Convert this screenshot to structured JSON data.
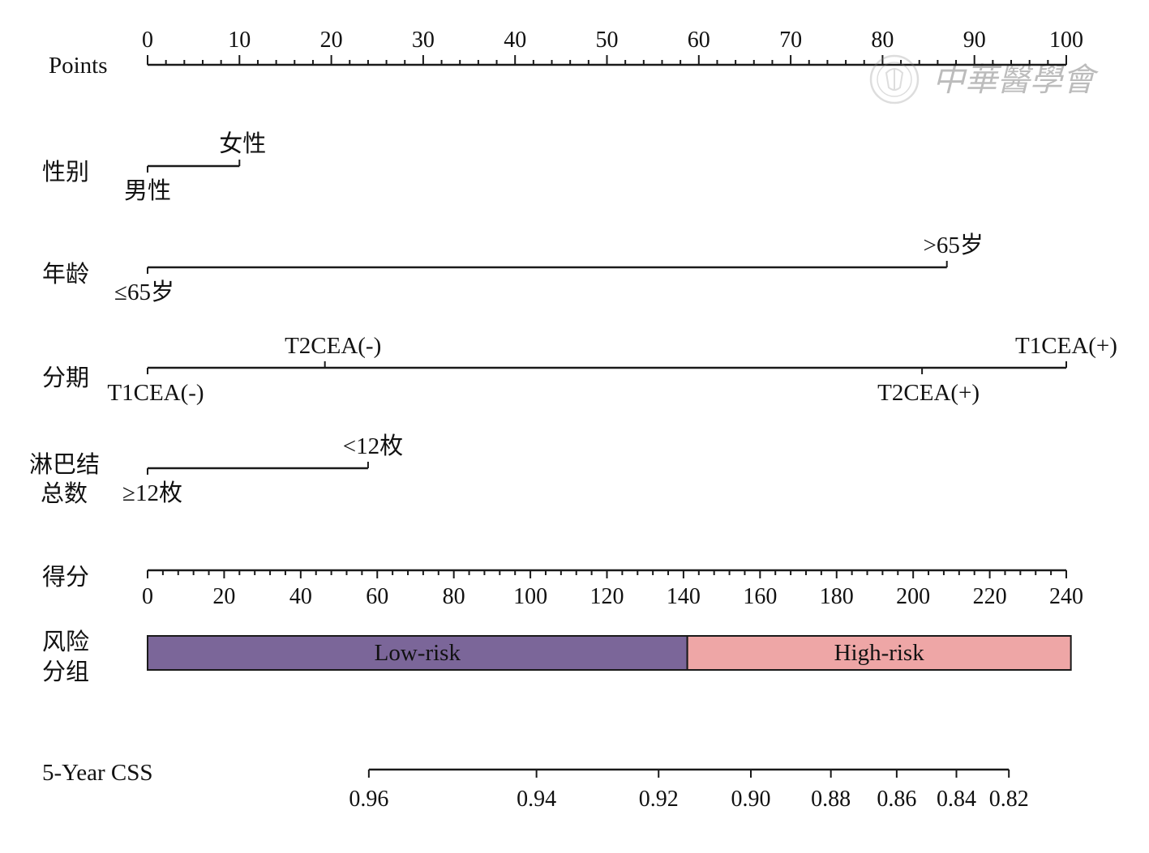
{
  "chart_data": {
    "type": "nomogram",
    "points_axis": {
      "label": "Points",
      "min": 0,
      "max": 100,
      "major_step": 10,
      "minor_step": 2,
      "tick_labels": [
        "0",
        "10",
        "20",
        "30",
        "40",
        "50",
        "60",
        "70",
        "80",
        "90",
        "100"
      ]
    },
    "variables": [
      {
        "key": "sex",
        "label": [
          "性别"
        ],
        "levels": [
          {
            "label": "男性",
            "points": 0,
            "side": "below"
          },
          {
            "label": "女性",
            "points": 10,
            "side": "above"
          }
        ]
      },
      {
        "key": "age",
        "label": [
          "年龄"
        ],
        "levels": [
          {
            "label": "≤65岁",
            "points": 0,
            "side": "below"
          },
          {
            "label": ">65岁",
            "points": 87,
            "side": "above"
          }
        ]
      },
      {
        "key": "stage",
        "label": [
          "分期"
        ],
        "levels": [
          {
            "label": "T1CEA(-)",
            "points": 0,
            "side": "below"
          },
          {
            "label": "T2CEA(-)",
            "points": 19.3,
            "side": "above"
          },
          {
            "label": "T2CEA(+)",
            "points": 84.3,
            "side": "below"
          },
          {
            "label": "T1CEA(+)",
            "points": 100,
            "side": "above"
          }
        ]
      },
      {
        "key": "lymph_nodes",
        "label": [
          "淋巴结",
          "总数"
        ],
        "levels": [
          {
            "label": "≥12枚",
            "points": 0,
            "side": "below"
          },
          {
            "label": "<12枚",
            "points": 24,
            "side": "above"
          }
        ]
      }
    ],
    "total_points_axis": {
      "label": "得分",
      "min": 0,
      "max": 240,
      "major_step": 20,
      "minor_step": 4,
      "tick_labels": [
        "0",
        "20",
        "40",
        "60",
        "80",
        "100",
        "120",
        "140",
        "160",
        "180",
        "200",
        "220",
        "240"
      ]
    },
    "risk_groups": {
      "label": [
        "风险",
        "分组"
      ],
      "groups": [
        {
          "label": "Low-risk",
          "from": 0,
          "to": 141,
          "color": "#7b6699"
        },
        {
          "label": "High-risk",
          "from": 141,
          "to": 241.2,
          "color": "#eea6a6"
        }
      ]
    },
    "css_axis": {
      "label": "5-Year CSS",
      "ticks": [
        {
          "label": "0.96",
          "value": 0.96,
          "total_points": 57.8
        },
        {
          "label": "0.94",
          "value": 0.94,
          "total_points": 101.6
        },
        {
          "label": "0.92",
          "value": 0.92,
          "total_points": 133.5
        },
        {
          "label": "0.90",
          "value": 0.9,
          "total_points": 157.6
        },
        {
          "label": "0.88",
          "value": 0.88,
          "total_points": 178.5
        },
        {
          "label": "0.86",
          "value": 0.86,
          "total_points": 195.7
        },
        {
          "label": "0.84",
          "value": 0.84,
          "total_points": 211.3
        },
        {
          "label": "0.82",
          "value": 0.82,
          "total_points": 225.0
        }
      ]
    }
  },
  "watermark": {
    "text": "中華醫學會",
    "icon": "seal-icon"
  }
}
